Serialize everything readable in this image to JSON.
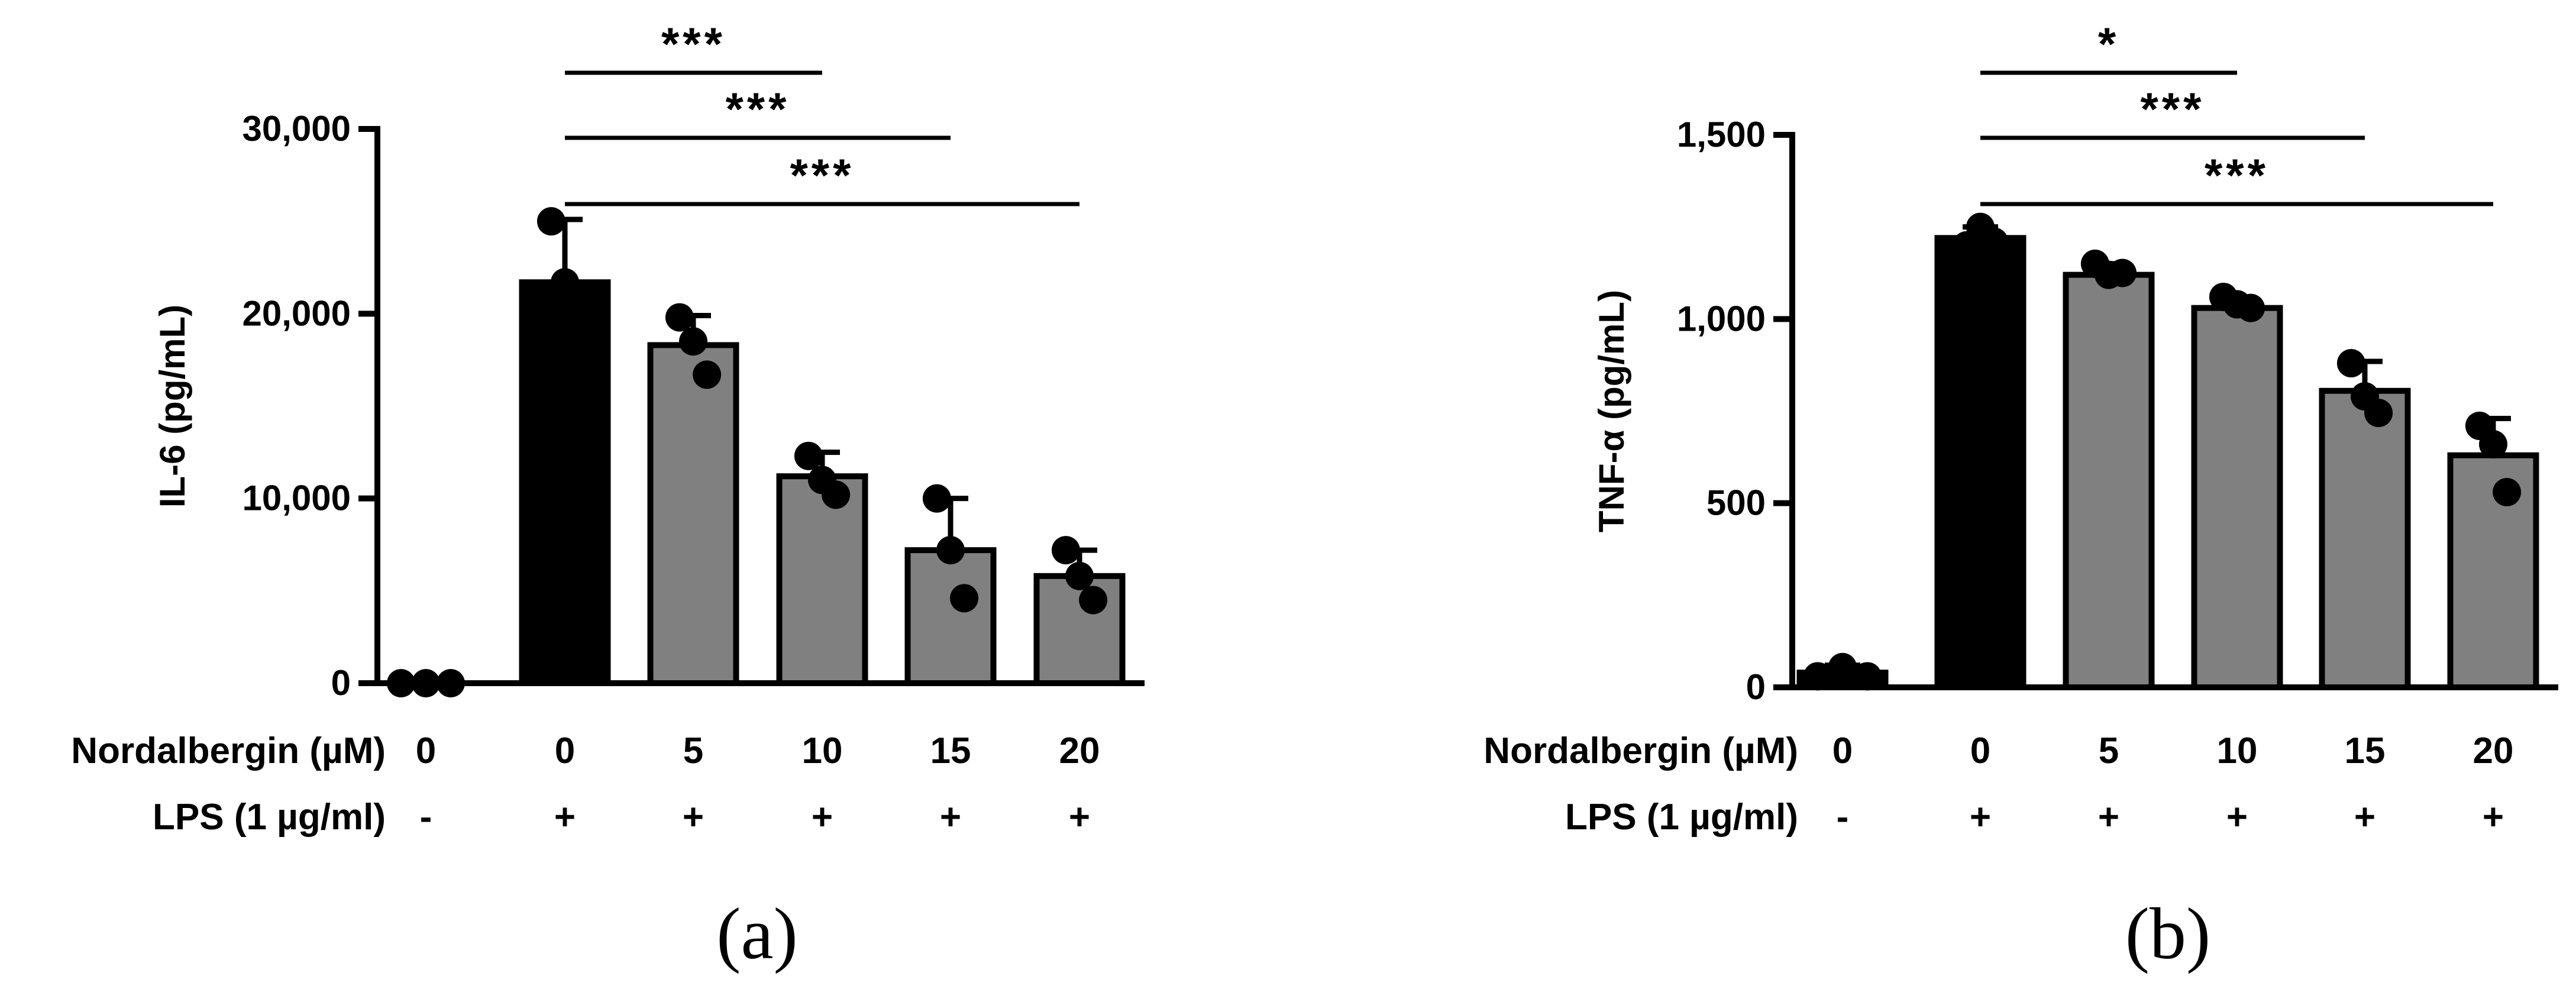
{
  "chart_data": [
    {
      "type": "bar",
      "panel_label": "(a)",
      "ylabel": "IL-6 (pg/mL)",
      "ylim": [
        0,
        30000
      ],
      "yticks": [
        0,
        10000,
        20000,
        30000
      ],
      "ytick_labels": [
        "0",
        "10,000",
        "20,000",
        "30,000"
      ],
      "row_labels": [
        "Nordalbergin (µM)",
        "LPS (1 µg/ml)"
      ],
      "categories": [
        {
          "nordalbergin": "0",
          "lps": "-"
        },
        {
          "nordalbergin": "0",
          "lps": "+"
        },
        {
          "nordalbergin": "5",
          "lps": "+"
        },
        {
          "nordalbergin": "10",
          "lps": "+"
        },
        {
          "nordalbergin": "15",
          "lps": "+"
        },
        {
          "nordalbergin": "20",
          "lps": "+"
        }
      ],
      "values": [
        0,
        21700,
        18300,
        11200,
        7200,
        5800
      ],
      "errors": [
        0,
        3400,
        1600,
        1300,
        2800,
        1400
      ],
      "points": [
        [
          0,
          0,
          0
        ],
        [
          25000,
          21700,
          18500
        ],
        [
          19800,
          18500,
          16700
        ],
        [
          12300,
          11000,
          10200
        ],
        [
          10000,
          7200,
          4600
        ],
        [
          7200,
          5800,
          4500
        ]
      ],
      "bar_colors": [
        "#000000",
        "#000000",
        "#808080",
        "#808080",
        "#808080",
        "#808080"
      ],
      "significance": [
        {
          "from": 1,
          "to": 3,
          "label": "***"
        },
        {
          "from": 1,
          "to": 4,
          "label": "***"
        },
        {
          "from": 1,
          "to": 5,
          "label": "***"
        }
      ]
    },
    {
      "type": "bar",
      "panel_label": "(b)",
      "ylabel": "TNF-α (pg/mL)",
      "ylim": [
        0,
        1500
      ],
      "yticks": [
        0,
        500,
        1000,
        1500
      ],
      "ytick_labels": [
        "0",
        "500",
        "1,000",
        "1,500"
      ],
      "row_labels": [
        "Nordalbergin (µM)",
        "LPS (1 µg/ml)"
      ],
      "categories": [
        {
          "nordalbergin": "0",
          "lps": "-"
        },
        {
          "nordalbergin": "0",
          "lps": "+"
        },
        {
          "nordalbergin": "5",
          "lps": "+"
        },
        {
          "nordalbergin": "10",
          "lps": "+"
        },
        {
          "nordalbergin": "15",
          "lps": "+"
        },
        {
          "nordalbergin": "20",
          "lps": "+"
        }
      ],
      "values": [
        40,
        1220,
        1120,
        1030,
        805,
        630
      ],
      "errors": [
        20,
        30,
        30,
        30,
        80,
        100
      ],
      "points": [
        [
          30,
          55,
          30
        ],
        [
          1200,
          1250,
          1210
        ],
        [
          1150,
          1120,
          1125
        ],
        [
          1060,
          1040,
          1030
        ],
        [
          880,
          790,
          745
        ],
        [
          710,
          660,
          530
        ]
      ],
      "bar_colors": [
        "#000000",
        "#000000",
        "#808080",
        "#808080",
        "#808080",
        "#808080"
      ],
      "significance": [
        {
          "from": 1,
          "to": 3,
          "label": "*"
        },
        {
          "from": 1,
          "to": 4,
          "label": "***"
        },
        {
          "from": 1,
          "to": 5,
          "label": "***"
        }
      ]
    }
  ]
}
